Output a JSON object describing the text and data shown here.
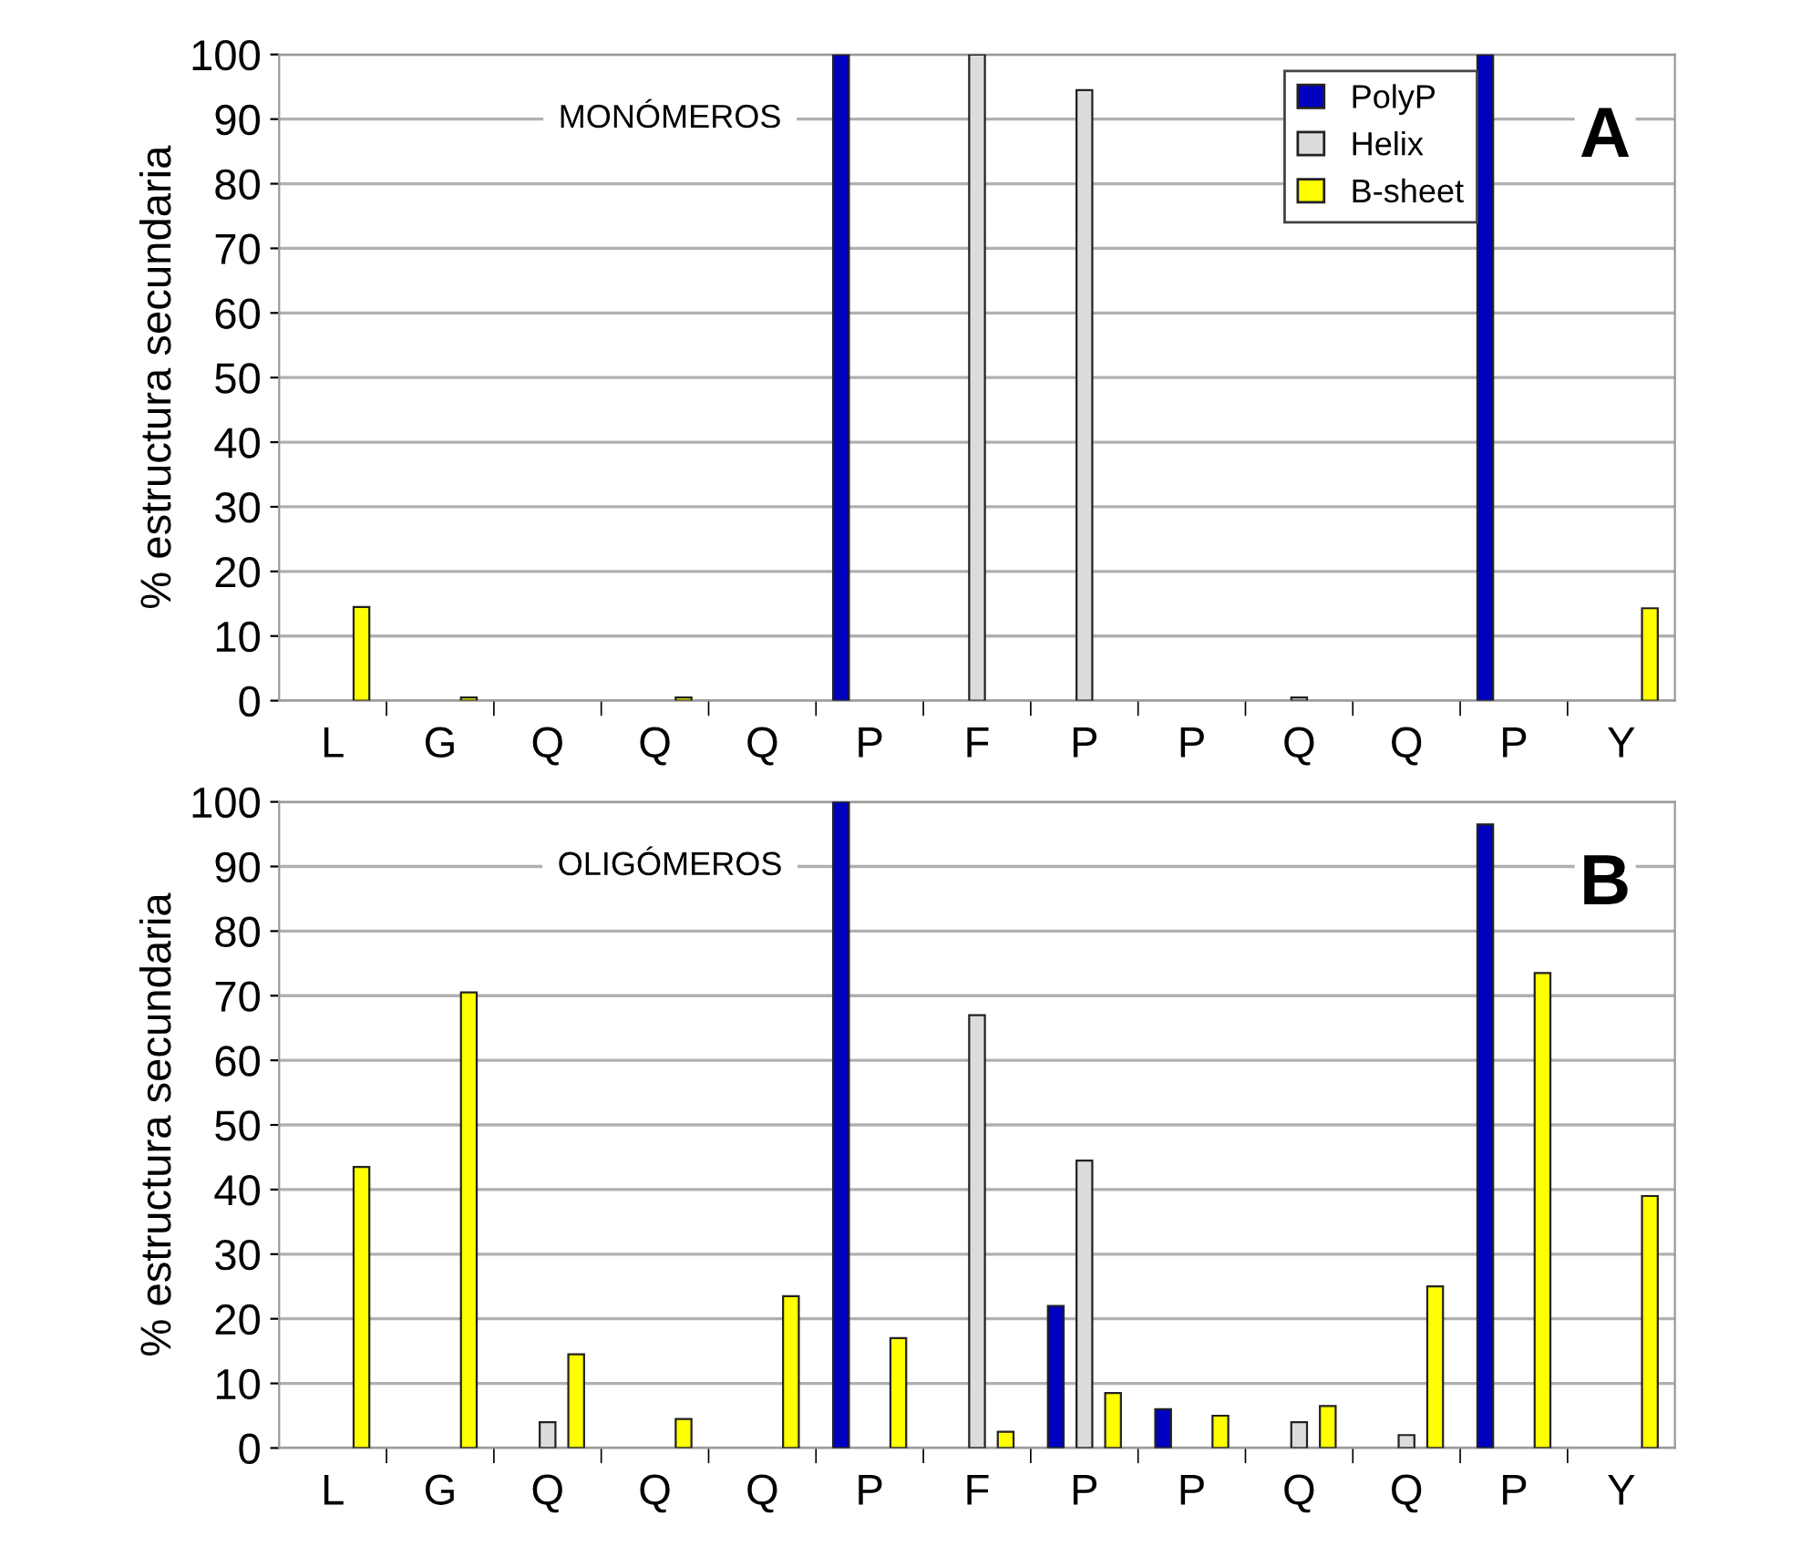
{
  "chart_data": [
    {
      "type": "bar",
      "ylabel": "% estructura secundaria",
      "categories": [
        "L",
        "G",
        "Q",
        "Q",
        "Q",
        "P",
        "F",
        "P",
        "P",
        "Q",
        "Q",
        "P",
        "Y"
      ],
      "ylim": [
        0,
        100
      ],
      "yticks": [
        0,
        10,
        20,
        30,
        40,
        50,
        60,
        70,
        80,
        90,
        100
      ],
      "grid": "y",
      "legend": "top right",
      "annotations": [
        "MONÓMEROS",
        "A"
      ],
      "series": [
        {
          "name": "PolyP",
          "color": "#0000c0",
          "values": [
            null,
            null,
            null,
            null,
            null,
            100,
            null,
            null,
            null,
            null,
            null,
            100,
            null
          ]
        },
        {
          "name": "Helix",
          "color": "#dcdcdc",
          "values": [
            null,
            null,
            null,
            null,
            null,
            null,
            100,
            94.5,
            null,
            0.5,
            null,
            null,
            null
          ]
        },
        {
          "name": "B-sheet",
          "color": "#ffff00",
          "values": [
            14.5,
            0.5,
            null,
            0.5,
            null,
            null,
            null,
            null,
            null,
            null,
            null,
            null,
            14.3
          ]
        }
      ]
    },
    {
      "type": "bar",
      "ylabel": "% estructura secundaria",
      "categories": [
        "L",
        "G",
        "Q",
        "Q",
        "Q",
        "P",
        "F",
        "P",
        "P",
        "Q",
        "Q",
        "P",
        "Y"
      ],
      "ylim": [
        0,
        100
      ],
      "yticks": [
        0,
        10,
        20,
        30,
        40,
        50,
        60,
        70,
        80,
        90,
        100
      ],
      "grid": "y",
      "annotations": [
        "OLIGÓMEROS",
        "B"
      ],
      "series": [
        {
          "color": "#0000c0",
          "values": [
            null,
            null,
            null,
            null,
            null,
            100,
            null,
            22,
            6,
            null,
            null,
            96.5,
            null
          ]
        },
        {
          "color": "#dcdcdc",
          "values": [
            null,
            null,
            4,
            null,
            null,
            null,
            67,
            44.5,
            null,
            4,
            2,
            null,
            null
          ]
        },
        {
          "color": "#ffff00",
          "values": [
            43.5,
            70.5,
            14.5,
            4.5,
            23.5,
            17,
            2.5,
            8.5,
            5,
            6.5,
            25,
            73.5,
            39
          ]
        }
      ]
    }
  ]
}
